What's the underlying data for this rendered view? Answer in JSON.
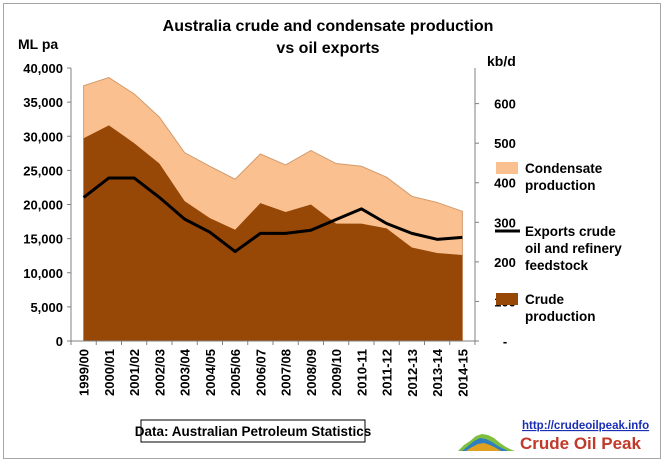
{
  "chart_data": {
    "type": "area",
    "title": "Australia crude and condensate production",
    "subtitle": "vs oil exports",
    "ylabel": "ML pa",
    "y2label": "kb/d",
    "ylim": [
      0,
      40000
    ],
    "y2lim": [
      0,
      690
    ],
    "y_ticks": [
      "0",
      "5,000",
      "10,000",
      "15,000",
      "20,000",
      "25,000",
      "30,000",
      "35,000",
      "40,000"
    ],
    "y2_ticks": [
      "-",
      "100",
      "200",
      "300",
      "400",
      "500",
      "600"
    ],
    "categories": [
      "1999/00",
      "2000/01",
      "2001/02",
      "2002/03",
      "2003/04",
      "2004/05",
      "2005/06",
      "2006/07",
      "2007/08",
      "2008/09",
      "2009/10",
      "2010-11",
      "2011-12",
      "2012-13",
      "2013-14",
      "2014-15"
    ],
    "series": [
      {
        "name": "Crude production",
        "type": "area",
        "axis": "left",
        "color": "#974706",
        "values": [
          29700,
          31600,
          29000,
          26000,
          20500,
          18000,
          16300,
          20200,
          18900,
          20000,
          17200,
          17200,
          16500,
          13700,
          12900,
          12600
        ]
      },
      {
        "name": "Condensate production",
        "type": "area_total",
        "axis": "left",
        "color": "#fac090",
        "values": [
          37400,
          38600,
          36200,
          32800,
          27600,
          25600,
          23700,
          27400,
          25800,
          27900,
          26000,
          25600,
          24000,
          21200,
          20300,
          19000
        ]
      },
      {
        "name": "Exports crude oil and refinery feedstock",
        "type": "line",
        "axis": "right",
        "color": "#000000",
        "values": [
          363,
          412,
          412,
          363,
          308,
          275,
          226,
          272,
          272,
          280,
          307,
          334,
          297,
          272,
          257,
          262
        ]
      }
    ],
    "legend": [
      {
        "label_lines": [
          "Condensate",
          "production"
        ],
        "kind": "swatch",
        "color": "#fac090"
      },
      {
        "label_lines": [
          "Exports crude",
          "oil and refinery",
          "feedstock"
        ],
        "kind": "line",
        "color": "#000000"
      },
      {
        "label_lines": [
          "Crude",
          "production"
        ],
        "kind": "swatch",
        "color": "#974706"
      }
    ],
    "legend_position": "right",
    "source_note": "Data: Australian Petroleum Statistics"
  },
  "footer": {
    "url": "http://crudeoilpeak.info",
    "brand": "Crude Oil Peak"
  }
}
